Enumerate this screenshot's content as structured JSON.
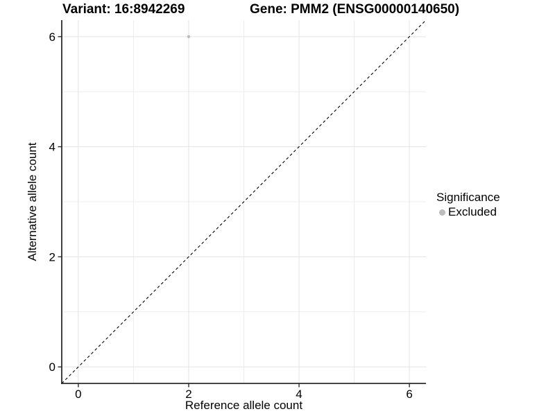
{
  "title": {
    "variant": "Variant: 16:8942269",
    "gene": "Gene: PMM2 (ENSG00000140650)"
  },
  "axes": {
    "x": {
      "label": "Reference allele count"
    },
    "y": {
      "label": "Alternative allele count"
    }
  },
  "legend": {
    "title": "Significance",
    "items": [
      {
        "label": "Excluded",
        "color": "#bcbcbc"
      }
    ]
  },
  "colors": {
    "background": "#ffffff",
    "text": "#000000",
    "grid_major": "#e3e3e3",
    "grid_minor": "#ededed",
    "axis": "#2b2b2b",
    "point": "#bcbcbc",
    "identity_line": "#000000"
  },
  "chart_data": {
    "type": "scatter",
    "title": "Variant: 16:8942269   Gene: PMM2 (ENSG00000140650)",
    "xlabel": "Reference allele count",
    "ylabel": "Alternative allele count",
    "xlim": [
      -0.3,
      6.3
    ],
    "ylim": [
      -0.3,
      6.3
    ],
    "x_ticks": [
      0,
      2,
      4,
      6
    ],
    "y_ticks": [
      0,
      2,
      4,
      6
    ],
    "x_minor_ticks": [
      1,
      3,
      5
    ],
    "y_minor_ticks": [
      1,
      3,
      5
    ],
    "grid": true,
    "legend_position": "right",
    "series": [
      {
        "name": "Excluded",
        "color": "#bcbcbc",
        "point_radius": 2.2,
        "points": [
          {
            "x": 2,
            "y": 6
          }
        ]
      }
    ],
    "reference_line": {
      "type": "identity",
      "slope": 1,
      "intercept": 0,
      "style": "dashed",
      "color": "#000000"
    }
  }
}
